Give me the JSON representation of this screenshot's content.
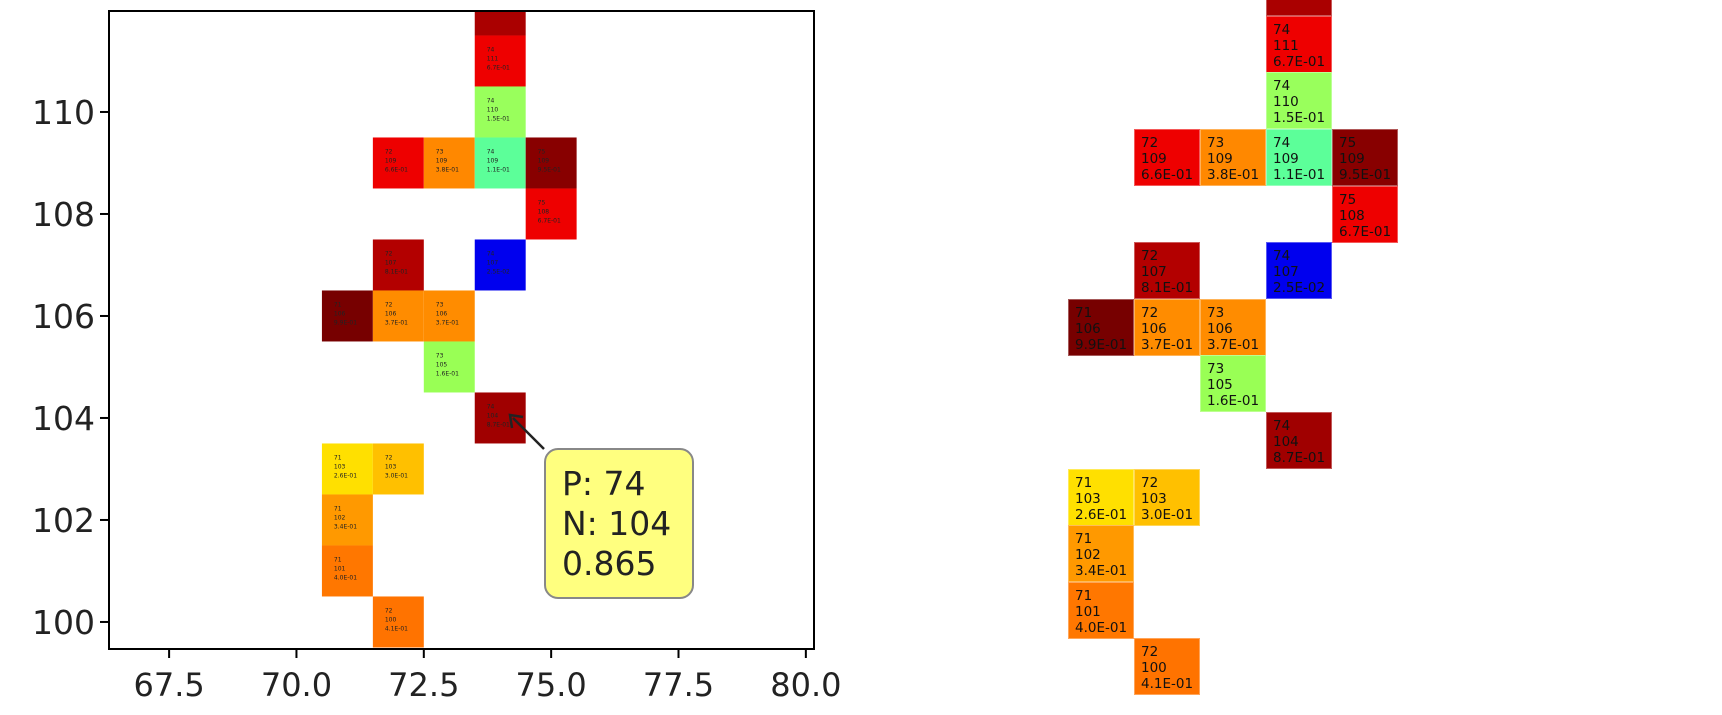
{
  "chart_data": {
    "type": "heatmap",
    "title": "",
    "xlabel": "",
    "ylabel": "",
    "xlim": [
      66.32,
      80.16
    ],
    "ylim": [
      99.47,
      111.98
    ],
    "xticks": [
      "67.5",
      "70.0",
      "72.5",
      "75.0",
      "77.5",
      "80.0"
    ],
    "yticks": [
      "100",
      "102",
      "104",
      "106",
      "108",
      "110"
    ],
    "grid": false,
    "annotation": {
      "p_label": "P: 74",
      "n_label": "N: 104",
      "value_label": "0.865",
      "p": 74,
      "n": 104,
      "value": 0.865,
      "color": "#ffff80"
    },
    "cells": [
      {
        "p": 74,
        "n": 112,
        "value": null,
        "label": null,
        "color": "#aa0000"
      },
      {
        "p": 74,
        "n": 111,
        "value": "6.7E-01",
        "label": "74",
        "color": "#ee0000"
      },
      {
        "p": 74,
        "n": 110,
        "value": "1.5E-01",
        "label": "74",
        "color": "#99ff5c"
      },
      {
        "p": 72,
        "n": 109,
        "value": "6.6E-01",
        "label": "72",
        "color": "#ee0000"
      },
      {
        "p": 73,
        "n": 109,
        "value": "3.8E-01",
        "label": "73",
        "color": "#ff8800"
      },
      {
        "p": 74,
        "n": 109,
        "value": "1.1E-01",
        "label": "74",
        "color": "#5cff99"
      },
      {
        "p": 75,
        "n": 109,
        "value": "9.5E-01",
        "label": "75",
        "color": "#880000"
      },
      {
        "p": 75,
        "n": 108,
        "value": "6.7E-01",
        "label": "75",
        "color": "#ee0000"
      },
      {
        "p": 72,
        "n": 107,
        "value": "8.1E-01",
        "label": "72",
        "color": "#b30000"
      },
      {
        "p": 74,
        "n": 107,
        "value": "2.5E-02",
        "label": "74",
        "color": "#0000ee"
      },
      {
        "p": 71,
        "n": 106,
        "value": "9.9E-01",
        "label": "71",
        "color": "#770000"
      },
      {
        "p": 72,
        "n": 106,
        "value": "3.7E-01",
        "label": "72",
        "color": "#ff8c00"
      },
      {
        "p": 73,
        "n": 106,
        "value": "3.7E-01",
        "label": "73",
        "color": "#ff8c00"
      },
      {
        "p": 73,
        "n": 105,
        "value": "1.6E-01",
        "label": "73",
        "color": "#99ff55"
      },
      {
        "p": 74,
        "n": 104,
        "value": "8.7E-01",
        "label": "74",
        "color": "#a00000"
      },
      {
        "p": 71,
        "n": 103,
        "value": "2.6E-01",
        "label": "71",
        "color": "#ffe000"
      },
      {
        "p": 72,
        "n": 103,
        "value": "3.0E-01",
        "label": "72",
        "color": "#ffc000"
      },
      {
        "p": 71,
        "n": 102,
        "value": "3.4E-01",
        "label": "71",
        "color": "#ff9900"
      },
      {
        "p": 71,
        "n": 101,
        "value": "4.0E-01",
        "label": "71",
        "color": "#ff7700"
      },
      {
        "p": 72,
        "n": 100,
        "value": "4.1E-01",
        "label": "72",
        "color": "#ff7300"
      }
    ]
  }
}
